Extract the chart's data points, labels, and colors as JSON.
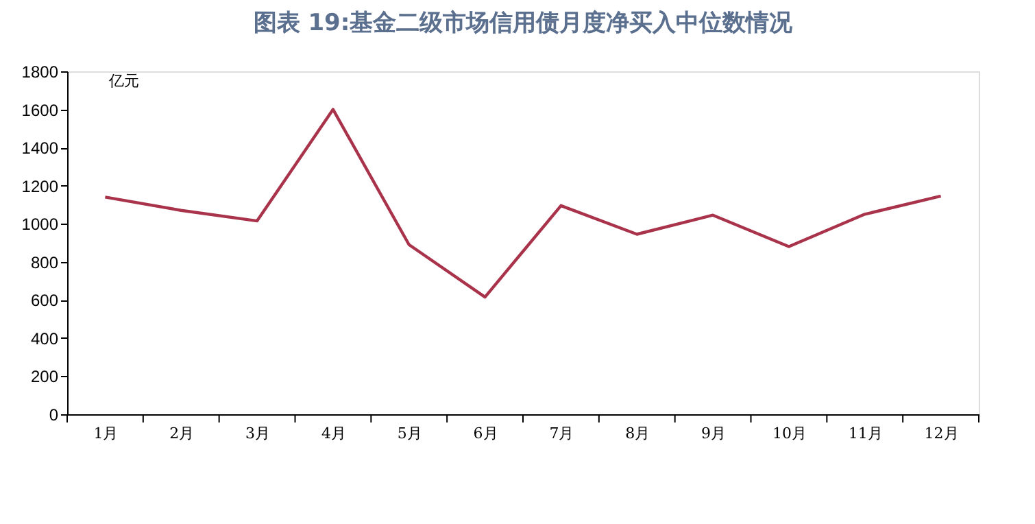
{
  "chart_data": {
    "type": "line",
    "title": "图表 19:基金二级市场信用债月度净买入中位数情况",
    "ylabel": "亿元",
    "categories": [
      "1月",
      "2月",
      "3月",
      "4月",
      "5月",
      "6月",
      "7月",
      "8月",
      "9月",
      "10月",
      "11月",
      "12月"
    ],
    "series": [
      {
        "color": "#a8334a",
        "values": [
          1140,
          1070,
          1015,
          1600,
          890,
          615,
          1095,
          945,
          1045,
          880,
          1050,
          1145
        ]
      }
    ],
    "ylim": [
      0,
      1800
    ],
    "yticks": [
      0,
      200,
      400,
      600,
      800,
      1000,
      1200,
      1400,
      1600,
      1800
    ],
    "grid": false,
    "legend": false,
    "marker": "none",
    "line_style": "solid"
  }
}
